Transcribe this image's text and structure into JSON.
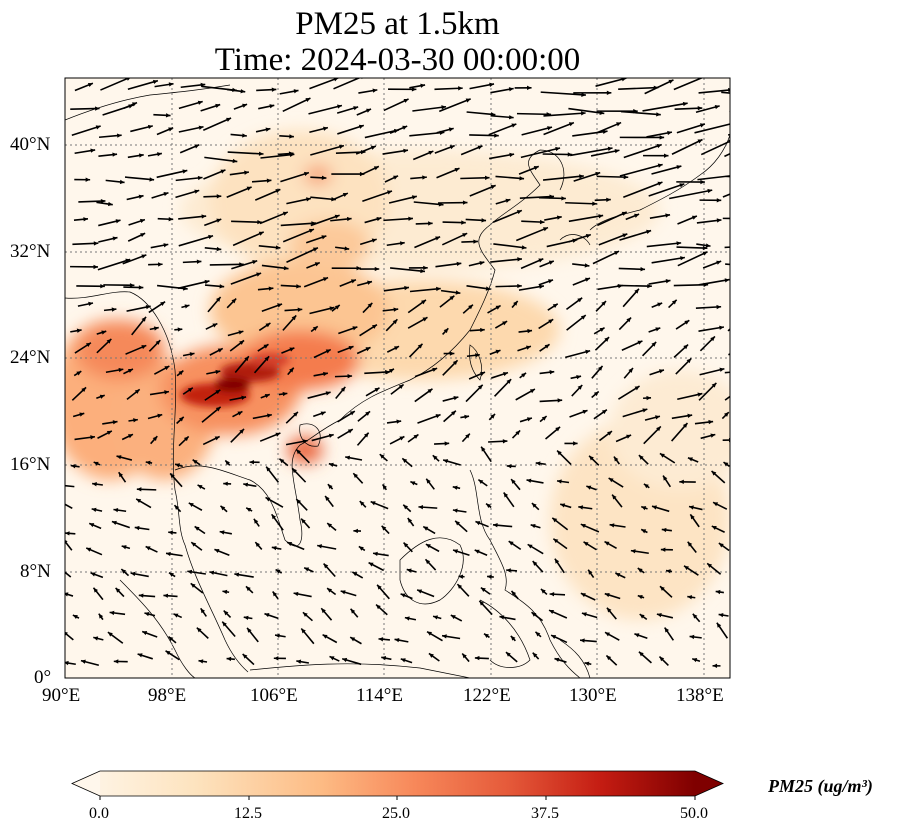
{
  "title": "PM25 at 1.5km",
  "time": "Time: 2024-03-30 00:00:00",
  "map": {
    "lon_range": [
      90,
      140
    ],
    "lat_range": [
      0,
      45
    ],
    "gridlines": "dotted",
    "lat_ticks": [
      "40°N",
      "32°N",
      "24°N",
      "16°N",
      "8°N",
      "0°"
    ],
    "lon_ticks": [
      "90°E",
      "98°E",
      "106°E",
      "114°E",
      "122°E",
      "130°E",
      "138°E"
    ],
    "wind_vectors": "shown"
  },
  "colorbar": {
    "label": "PM25 (ug/m³)",
    "range": [
      0.0,
      50.0
    ],
    "ticks": [
      "0.0",
      "12.5",
      "25.0",
      "37.5",
      "50.0"
    ],
    "colormap": "OrRd",
    "extend": "both"
  }
}
